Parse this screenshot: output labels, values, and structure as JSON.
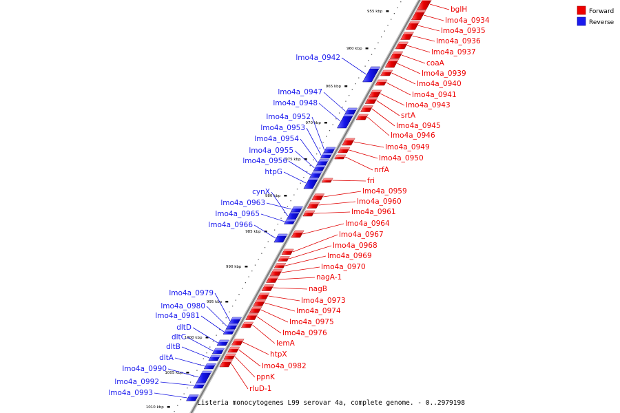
{
  "legend": {
    "forward": {
      "label": "Forward",
      "color": "#ee0000"
    },
    "reverse": {
      "label": "Reverse",
      "color": "#1a1aee"
    }
  },
  "caption": "Listeria monocytogenes L99 serovar 4a, complete genome. - 0..2979198",
  "scale_unit": "kbp",
  "ticks": [
    {
      "label": "955 kbp"
    },
    {
      "label": "960 kbp"
    },
    {
      "label": "965 kbp"
    },
    {
      "label": "970 kbp"
    },
    {
      "label": "975 kbp"
    },
    {
      "label": "980 kbp"
    },
    {
      "label": "985 kbp"
    },
    {
      "label": "990 kbp"
    },
    {
      "label": "995 kbp"
    },
    {
      "label": "1000 kbp"
    },
    {
      "label": "1005 kbp"
    },
    {
      "label": "1010 kbp"
    }
  ],
  "forward_genes": [
    "bglH",
    "lmo4a_0934",
    "lmo4a_0935",
    "lmo4a_0936",
    "lmo4a_0937",
    "coaA",
    "lmo4a_0939",
    "lmo4a_0940",
    "lmo4a_0941",
    "lmo4a_0943",
    "srtA",
    "lmo4a_0945",
    "lmo4a_0946",
    "lmo4a_0949",
    "lmo4a_0950",
    "nrfA",
    "fri",
    "lmo4a_0959",
    "lmo4a_0960",
    "lmo4a_0961",
    "lmo4a_0964",
    "lmo4a_0967",
    "lmo4a_0968",
    "lmo4a_0969",
    "lmo4a_0970",
    "nagA-1",
    "nagB",
    "lmo4a_0973",
    "lmo4a_0974",
    "lmo4a_0975",
    "lmo4a_0976",
    "lemA",
    "htpX",
    "lmo4a_0982",
    "ppnK",
    "rluD-1"
  ],
  "reverse_genes": [
    "lmo4a_0942",
    "lmo4a_0947",
    "lmo4a_0948",
    "lmo4a_0952",
    "lmo4a_0953",
    "lmo4a_0954",
    "lmo4a_0955",
    "lmo4a_0956",
    "htpG",
    "cynX",
    "lmo4a_0963",
    "lmo4a_0965",
    "lmo4a_0966",
    "lmo4a_0979",
    "lmo4a_0980",
    "lmo4a_0981",
    "dltD",
    "dltC",
    "dltB",
    "dltA",
    "lmo4a_0990",
    "lmo4a_0992",
    "lmo4a_0993"
  ]
}
